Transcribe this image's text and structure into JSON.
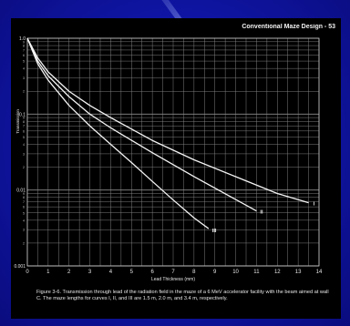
{
  "slide": {
    "title": "Conventional Maze Design - 53",
    "caption": "Figure 3-6. Transmission through lead of the radiation field in the maze of a 6 MeV accelerator facility with the beam aimed at wall C. The maze lengths for curves I, II, and III are 1.5 m, 2.0 m, and 3.4 m, respectively."
  },
  "colors": {
    "background": "#1016a8",
    "panel": "#000000",
    "grid": "#8a8a8a",
    "curve": "#f4f4f4"
  },
  "chart_data": {
    "type": "line",
    "xlabel": "Lead Thickness (mm)",
    "ylabel": "Transmission",
    "xlim": [
      0,
      14
    ],
    "ylim": [
      0.001,
      1
    ],
    "yscale": "log",
    "grid": true,
    "x_ticks": [
      "0",
      "1",
      "2",
      "3",
      "4",
      "5",
      "6",
      "7",
      "8",
      "9",
      "10",
      "11",
      "12",
      "13",
      "14"
    ],
    "y_ticks": [
      {
        "value": 1,
        "label": "1.0"
      },
      {
        "value": 0.1,
        "label": "0.1"
      },
      {
        "value": 0.01,
        "label": "0.01"
      },
      {
        "value": 0.001,
        "label": "0.001"
      }
    ],
    "series": [
      {
        "name": "I",
        "x": [
          0,
          0.5,
          1,
          2,
          3,
          4,
          6,
          8,
          10,
          12,
          13.5
        ],
        "y": [
          1,
          0.55,
          0.36,
          0.2,
          0.13,
          0.09,
          0.045,
          0.025,
          0.015,
          0.009,
          0.0068
        ]
      },
      {
        "name": "II",
        "x": [
          0,
          0.5,
          1,
          2,
          3,
          4,
          6,
          8,
          10,
          11
        ],
        "y": [
          1,
          0.5,
          0.32,
          0.17,
          0.1,
          0.066,
          0.031,
          0.015,
          0.0075,
          0.0053
        ]
      },
      {
        "name": "III",
        "x": [
          0,
          0.5,
          1,
          2,
          3,
          4,
          5,
          6,
          7,
          8,
          8.7
        ],
        "y": [
          1,
          0.46,
          0.28,
          0.13,
          0.07,
          0.04,
          0.023,
          0.013,
          0.0074,
          0.0043,
          0.0031
        ]
      }
    ]
  }
}
